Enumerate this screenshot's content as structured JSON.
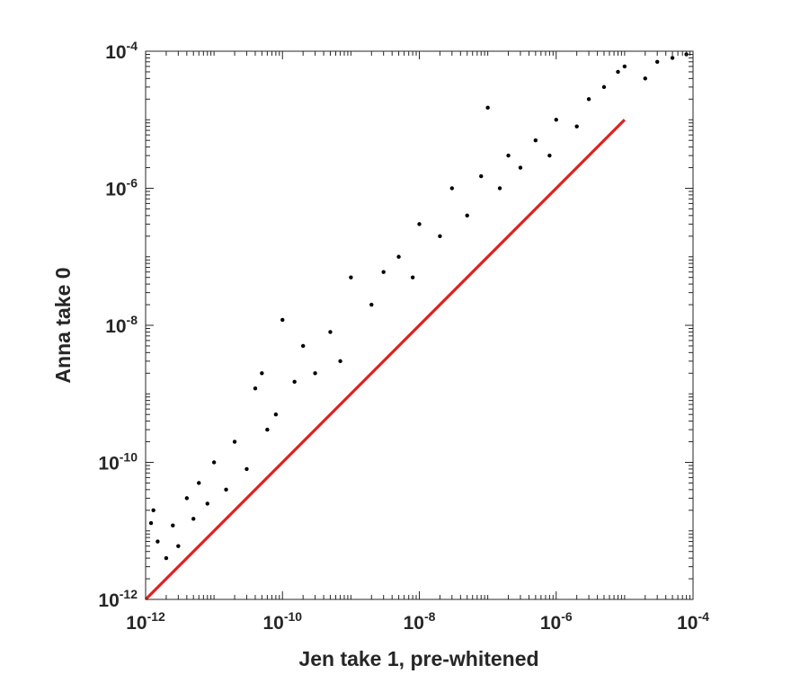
{
  "chart_data": {
    "type": "scatter",
    "xlabel": "Jen take 1, pre-whitened",
    "ylabel": "Anna take 0",
    "x_scale": "log",
    "y_scale": "log",
    "xlim": [
      1e-12,
      0.0001
    ],
    "ylim": [
      1e-12,
      0.0001
    ],
    "grid": false,
    "x_ticks": [
      {
        "base": "10",
        "exp": "-12"
      },
      {
        "base": "10",
        "exp": "-10"
      },
      {
        "base": "10",
        "exp": "-8"
      },
      {
        "base": "10",
        "exp": "-6"
      },
      {
        "base": "10",
        "exp": "-4"
      }
    ],
    "y_ticks": [
      {
        "base": "10",
        "exp": "-12"
      },
      {
        "base": "10",
        "exp": "-10"
      },
      {
        "base": "10",
        "exp": "-8"
      },
      {
        "base": "10",
        "exp": "-6"
      },
      {
        "base": "10",
        "exp": "-4"
      }
    ],
    "series": [
      {
        "marker_color": "#000000",
        "points": [
          [
            1.2e-12,
            1.3e-11
          ],
          [
            1.3e-12,
            2e-11
          ],
          [
            1.5e-12,
            7e-12
          ],
          [
            2e-12,
            4e-12
          ],
          [
            2.5e-12,
            1.2e-11
          ],
          [
            3e-12,
            6e-12
          ],
          [
            4e-12,
            3e-11
          ],
          [
            5e-12,
            1.5e-11
          ],
          [
            6e-12,
            5e-11
          ],
          [
            8e-12,
            2.5e-11
          ],
          [
            1e-11,
            1e-10
          ],
          [
            1.5e-11,
            4e-11
          ],
          [
            2e-11,
            2e-10
          ],
          [
            3e-11,
            8e-11
          ],
          [
            4e-11,
            1.2e-09
          ],
          [
            5e-11,
            2e-09
          ],
          [
            6e-11,
            3e-10
          ],
          [
            8e-11,
            5e-10
          ],
          [
            1e-10,
            1.2e-08
          ],
          [
            1.5e-10,
            1.5e-09
          ],
          [
            2e-10,
            5e-09
          ],
          [
            3e-10,
            2e-09
          ],
          [
            5e-10,
            8e-09
          ],
          [
            7e-10,
            3e-09
          ],
          [
            1e-09,
            5e-08
          ],
          [
            2e-09,
            2e-08
          ],
          [
            3e-09,
            6e-08
          ],
          [
            5e-09,
            1e-07
          ],
          [
            8e-09,
            5e-08
          ],
          [
            1e-08,
            3e-07
          ],
          [
            2e-08,
            2e-07
          ],
          [
            3e-08,
            1e-06
          ],
          [
            5e-08,
            4e-07
          ],
          [
            8e-08,
            1.5e-06
          ],
          [
            1e-07,
            1.5e-05
          ],
          [
            1.5e-07,
            1e-06
          ],
          [
            2e-07,
            3e-06
          ],
          [
            3e-07,
            2e-06
          ],
          [
            5e-07,
            5e-06
          ],
          [
            8e-07,
            3e-06
          ],
          [
            1e-06,
            1e-05
          ],
          [
            2e-06,
            8e-06
          ],
          [
            3e-06,
            2e-05
          ],
          [
            5e-06,
            3e-05
          ],
          [
            8e-06,
            5e-05
          ],
          [
            1e-05,
            6e-05
          ],
          [
            2e-05,
            4e-05
          ],
          [
            3e-05,
            7e-05
          ],
          [
            5e-05,
            8e-05
          ],
          [
            8e-05,
            9e-05
          ]
        ]
      }
    ],
    "reference_line": {
      "color": "#e02020",
      "from": [
        1e-12,
        1e-12
      ],
      "to": [
        1e-05,
        1e-05
      ]
    }
  }
}
